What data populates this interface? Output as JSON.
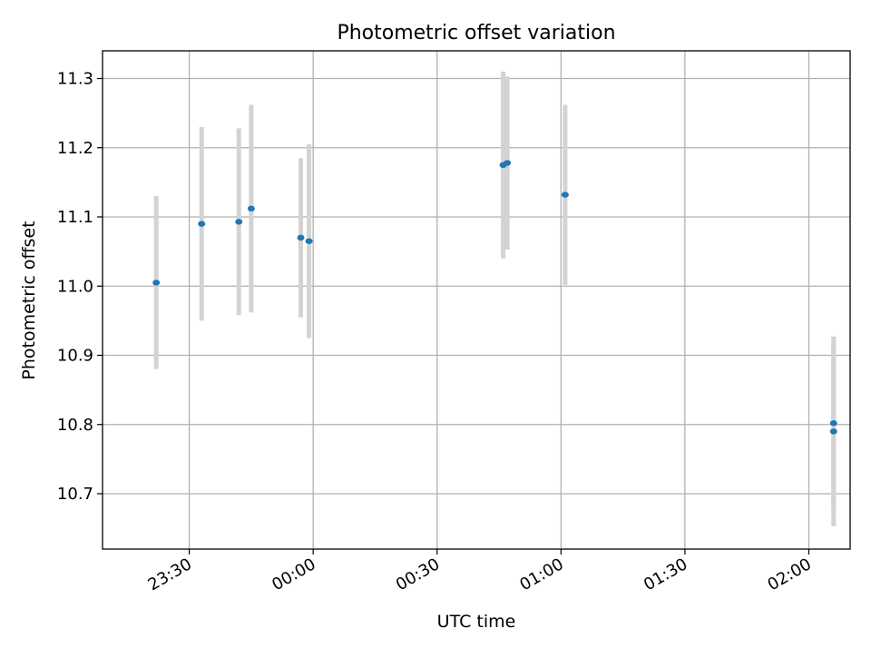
{
  "chart_data": {
    "type": "scatter",
    "title": "Photometric offset variation",
    "xlabel": "UTC time",
    "ylabel": "Photometric offset",
    "x_unit": "HH:MM (UTC), crossing midnight",
    "xlim": [
      "23:09",
      "02:10"
    ],
    "ylim": [
      10.62,
      11.34
    ],
    "x_ticks": [
      "23:30",
      "00:00",
      "00:30",
      "01:00",
      "01:30",
      "02:00"
    ],
    "y_ticks": [
      10.7,
      10.8,
      10.9,
      11.0,
      11.1,
      11.2,
      11.3
    ],
    "grid": true,
    "error_bar_color": "#d3d3d3",
    "point_color": "#1f77b4",
    "series": [
      {
        "points": [
          {
            "x": "23:22",
            "y": 11.005,
            "yerr": 0.125
          },
          {
            "x": "23:33",
            "y": 11.09,
            "yerr": 0.14
          },
          {
            "x": "23:42",
            "y": 11.093,
            "yerr": 0.135
          },
          {
            "x": "23:45",
            "y": 11.112,
            "yerr": 0.15
          },
          {
            "x": "23:57",
            "y": 11.07,
            "yerr": 0.115
          },
          {
            "x": "23:59",
            "y": 11.065,
            "yerr": 0.14
          },
          {
            "x": "00:46",
            "y": 11.175,
            "yerr": 0.135
          },
          {
            "x": "00:47",
            "y": 11.178,
            "yerr": 0.125
          },
          {
            "x": "01:01",
            "y": 11.132,
            "yerr": 0.13
          },
          {
            "x": "02:06",
            "y": 10.802,
            "yerr": 0.125
          },
          {
            "x": "02:06",
            "y": 10.79,
            "yerr": 0.137
          }
        ]
      }
    ]
  }
}
